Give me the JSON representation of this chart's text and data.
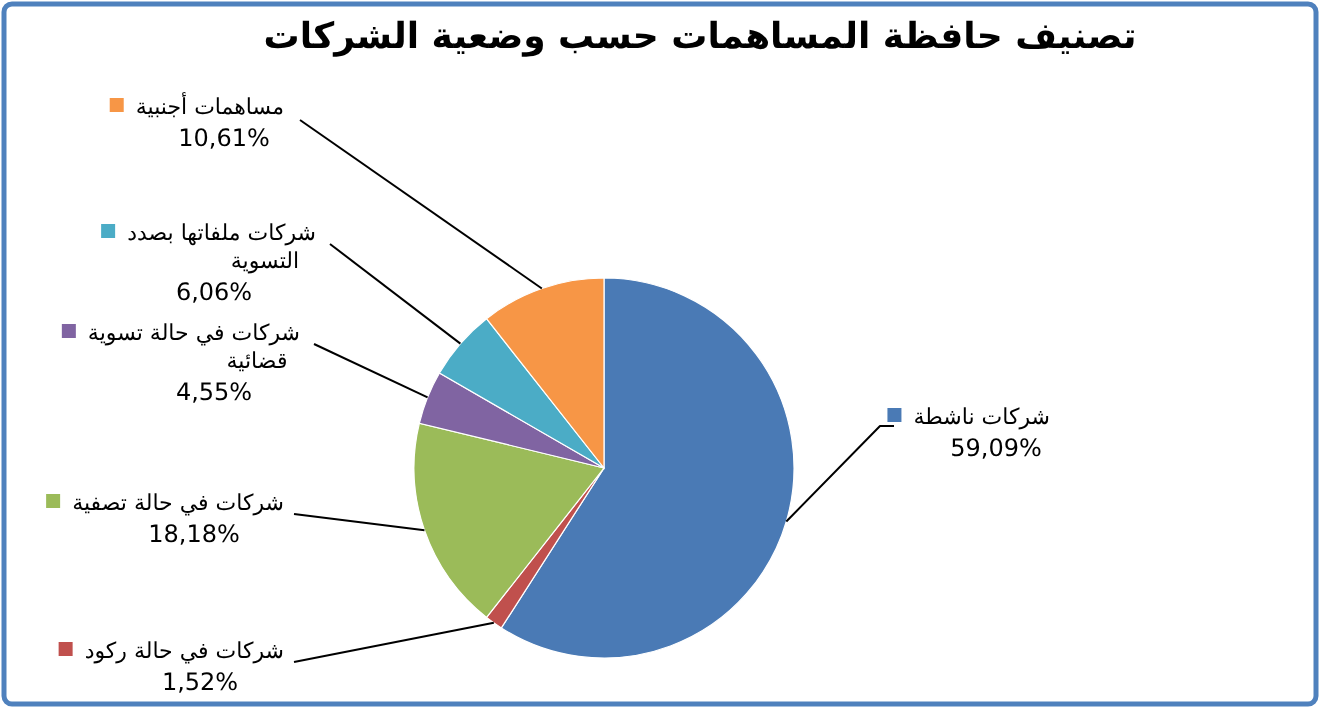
{
  "chart_data": {
    "type": "pie",
    "title": "تصنيف حافظة المساهمات حسب وضعية الشركات",
    "categories": [
      "شركات ناشطة",
      "شركات في حالة ركود",
      "شركات في حالة تصفية",
      "شركات في حالة تسوية قضائية",
      "شركات ملفاتها بصدد التسوية",
      "مساهمات أجنبية"
    ],
    "values": [
      59.09,
      1.52,
      18.18,
      4.55,
      6.06,
      10.61
    ],
    "value_labels": [
      "59,09%",
      "1,52%",
      "18,18%",
      "4,55%",
      "6,06%",
      "10,61%"
    ],
    "legend": "left",
    "colors": [
      "#4a7ab5",
      "#c0504d",
      "#9bbb59",
      "#8064a2",
      "#4bacc6",
      "#f79646"
    ]
  }
}
